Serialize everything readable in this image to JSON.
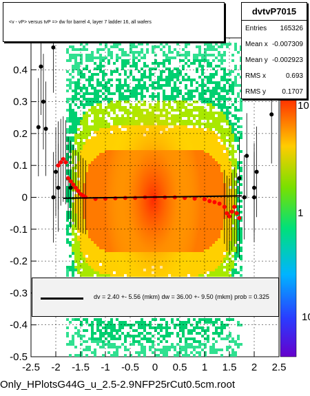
{
  "chart_data": {
    "type": "scatter",
    "title": "<v - vP>       versus  tvP =>  dw for barrel 4, layer 7 ladder 16, all wafers",
    "xlim": [
      -2.5,
      2.5
    ],
    "ylim": [
      -0.5,
      0.5
    ],
    "x_ticks": [
      "-2.5",
      "-2",
      "-1.5",
      "-1",
      "-0.5",
      "0",
      "0.5",
      "1",
      "1.5",
      "2",
      "2.5"
    ],
    "y_ticks": [
      "-0.5",
      "-0.4",
      "-0.3",
      "-0.2",
      "-0.1",
      "0",
      "0.1",
      "0.2",
      "0.3",
      "0.4"
    ],
    "colorbar_ticks": [
      "10",
      "1",
      "10"
    ],
    "profile_points": [
      {
        "x": -1.95,
        "y": 0.1
      },
      {
        "x": -1.9,
        "y": 0.11
      },
      {
        "x": -1.85,
        "y": 0.12
      },
      {
        "x": -1.8,
        "y": 0.11
      },
      {
        "x": -1.75,
        "y": 0.06
      },
      {
        "x": -1.7,
        "y": 0.05
      },
      {
        "x": -1.65,
        "y": 0.04
      },
      {
        "x": -1.6,
        "y": 0.03
      },
      {
        "x": -1.55,
        "y": 0.02
      },
      {
        "x": -1.5,
        "y": 0.01
      },
      {
        "x": -1.45,
        "y": 0.005
      },
      {
        "x": -1.4,
        "y": 0.0
      },
      {
        "x": -1.2,
        "y": -0.005
      },
      {
        "x": -1.0,
        "y": -0.004
      },
      {
        "x": -0.8,
        "y": -0.003
      },
      {
        "x": -0.6,
        "y": -0.002
      },
      {
        "x": -0.4,
        "y": -0.002
      },
      {
        "x": -0.2,
        "y": 0.0
      },
      {
        "x": 0.0,
        "y": 0.0
      },
      {
        "x": 0.2,
        "y": 0.0
      },
      {
        "x": 0.4,
        "y": 0.0
      },
      {
        "x": 0.6,
        "y": -0.002
      },
      {
        "x": 0.8,
        "y": -0.004
      },
      {
        "x": 1.0,
        "y": -0.006
      },
      {
        "x": 1.1,
        "y": -0.012
      },
      {
        "x": 1.2,
        "y": -0.015
      },
      {
        "x": 1.3,
        "y": -0.02
      },
      {
        "x": 1.4,
        "y": -0.03
      },
      {
        "x": 1.45,
        "y": -0.05
      },
      {
        "x": 1.5,
        "y": -0.06
      },
      {
        "x": 1.55,
        "y": -0.045
      },
      {
        "x": 1.6,
        "y": -0.03
      },
      {
        "x": 1.65,
        "y": -0.05
      },
      {
        "x": 1.7,
        "y": -0.065
      }
    ],
    "outlier_points": [
      {
        "x": -2.05,
        "y": 0.47
      },
      {
        "x": -2.3,
        "y": 0.41
      },
      {
        "x": -2.25,
        "y": 0.3
      },
      {
        "x": -2.35,
        "y": 0.22
      },
      {
        "x": -2.2,
        "y": 0.215
      },
      {
        "x": -2.0,
        "y": 0.08
      },
      {
        "x": -2.05,
        "y": 0.0
      },
      {
        "x": -1.95,
        "y": 0.03
      },
      {
        "x": -1.7,
        "y": 0.03
      },
      {
        "x": 2.35,
        "y": 0.26
      },
      {
        "x": 1.85,
        "y": 0.13
      },
      {
        "x": 2.05,
        "y": 0.08
      },
      {
        "x": 2.0,
        "y": 0.03
      },
      {
        "x": 2.0,
        "y": 0.0
      },
      {
        "x": 1.7,
        "y": 0.06
      },
      {
        "x": 1.8,
        "y": 0.0
      }
    ],
    "fit_line": {
      "x": [
        -1.85,
        1.75
      ],
      "y": [
        -0.003,
        0.0045
      ]
    },
    "colors": {
      "profile": "#ff0000",
      "outlier": "#000000",
      "fit": "#000000"
    }
  },
  "stats": {
    "name": "dvtvP7015",
    "rows": [
      {
        "k": "Entries",
        "v": "165326"
      },
      {
        "k": "Mean x",
        "v": "-0.007309"
      },
      {
        "k": "Mean y",
        "v": "-0.002923"
      },
      {
        "k": "RMS x",
        "v": "0.693"
      },
      {
        "k": "RMS y",
        "v": "0.1707"
      }
    ]
  },
  "fit_text": "dv =    2.40 +- 5.56 (mkm) dw =   36.00 +- 9.50 (mkm) prob = 0.325",
  "footer": "Only_HPlotsG44G_u_2.5-2.9NFP25rCut0.5cm.root"
}
